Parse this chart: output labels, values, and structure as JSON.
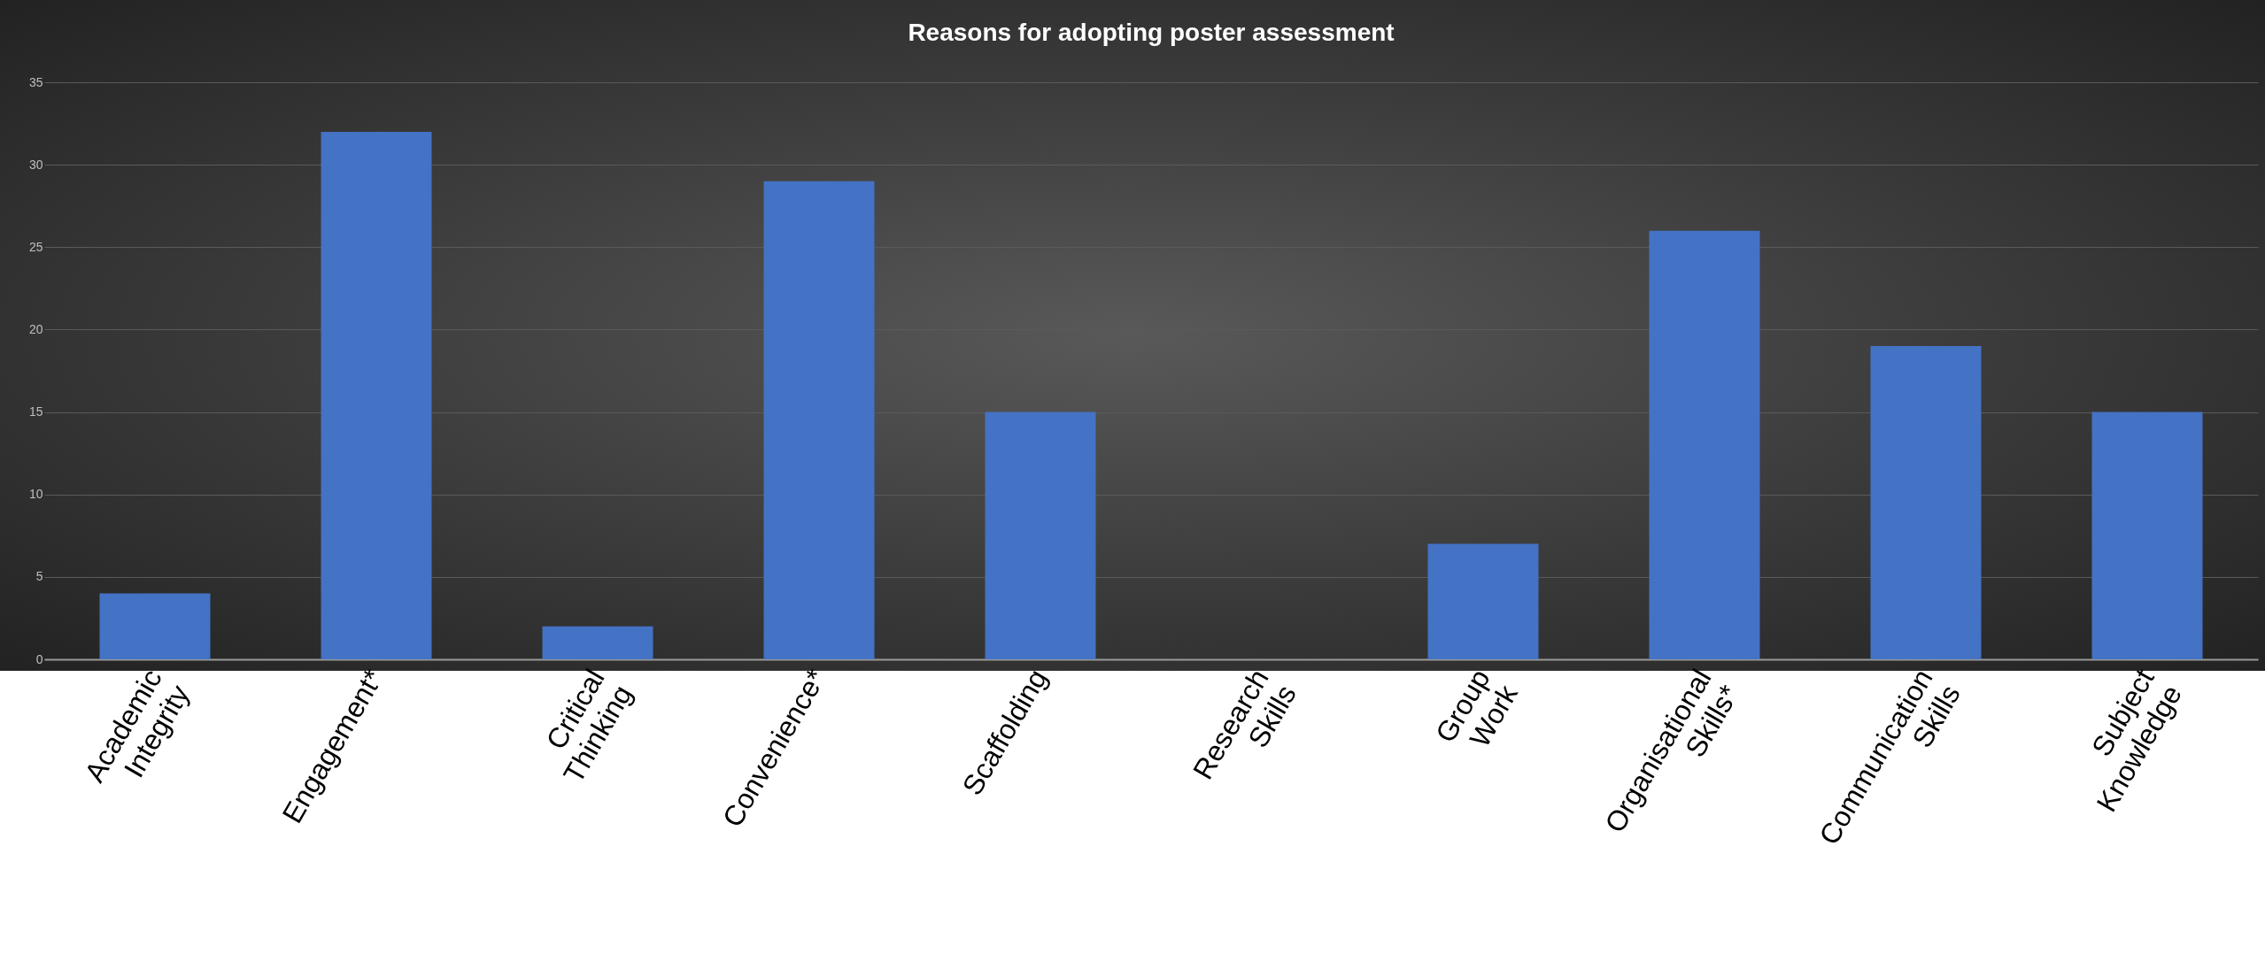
{
  "chart_data": {
    "type": "bar",
    "title": "Reasons for adopting poster assessment",
    "categories": [
      "Academic\nIntegrity",
      "Engagement*",
      "Critical\nThinking",
      "Convenience*",
      "Scaffolding",
      "Research\nSkills",
      "Group\nWork",
      "Organisational\nSkills*",
      "Communication\nSkills",
      "Subject\nKnowledge"
    ],
    "values": [
      4,
      32,
      2,
      29,
      15,
      0,
      7,
      26,
      19,
      15
    ],
    "color": "#4472c4",
    "ylim": [
      0,
      35
    ],
    "yticks": [
      0,
      5,
      10,
      15,
      20,
      25,
      30,
      35
    ],
    "grid": "y"
  }
}
